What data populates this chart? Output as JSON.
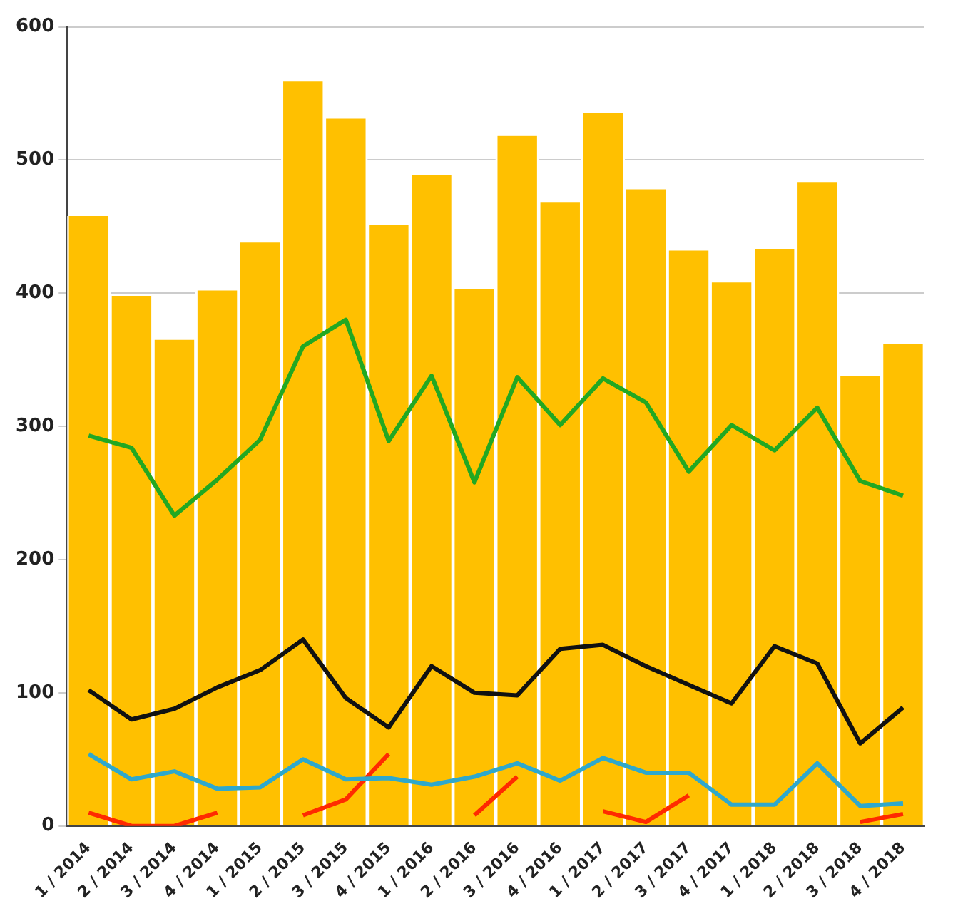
{
  "chart_data": {
    "type": "bar",
    "categories": [
      "1 / 2014",
      "2 / 2014",
      "3 / 2014",
      "4 / 2014",
      "1 / 2015",
      "2 / 2015",
      "3 / 2015",
      "4 / 2015",
      "1 / 2016",
      "2 / 2016",
      "3 / 2016",
      "4 / 2016",
      "1 / 2017",
      "2 / 2017",
      "3 / 2017",
      "4 / 2017",
      "1 / 2018",
      "2 / 2018",
      "3 / 2018",
      "4 / 2018"
    ],
    "series": [
      {
        "color": "#ffc000",
        "values": [
          458,
          398,
          365,
          402,
          438,
          559,
          531,
          451,
          489,
          403,
          518,
          468,
          535,
          478,
          432,
          408,
          433,
          483,
          338,
          362
        ]
      },
      {
        "type": "line",
        "color": "#22a822",
        "values": [
          293,
          284,
          233,
          260,
          290,
          360,
          380,
          289,
          338,
          258,
          337,
          301,
          336,
          318,
          266,
          301,
          282,
          314,
          259,
          248
        ]
      },
      {
        "type": "line",
        "color": "#111111",
        "values": [
          102,
          80,
          88,
          104,
          117,
          140,
          96,
          74,
          120,
          100,
          98,
          133,
          136,
          120,
          106,
          92,
          135,
          122,
          62,
          89
        ]
      },
      {
        "type": "line",
        "color": "#2fa8cc",
        "values": [
          54,
          35,
          41,
          28,
          29,
          50,
          35,
          36,
          31,
          37,
          47,
          34,
          51,
          40,
          40,
          16,
          16,
          47,
          15,
          17
        ]
      },
      {
        "type": "line",
        "color": "#ff2a00",
        "values": [
          10,
          0,
          0,
          10,
          null,
          8,
          20,
          54,
          null,
          8,
          37,
          null,
          11,
          3,
          23,
          null,
          null,
          null,
          3,
          9
        ]
      }
    ],
    "ylim": [
      0,
      600
    ],
    "yticks": [
      0,
      100,
      200,
      300,
      400,
      500,
      600
    ],
    "grid": "y",
    "legend": false,
    "marker": "none",
    "line_style": "solid"
  }
}
